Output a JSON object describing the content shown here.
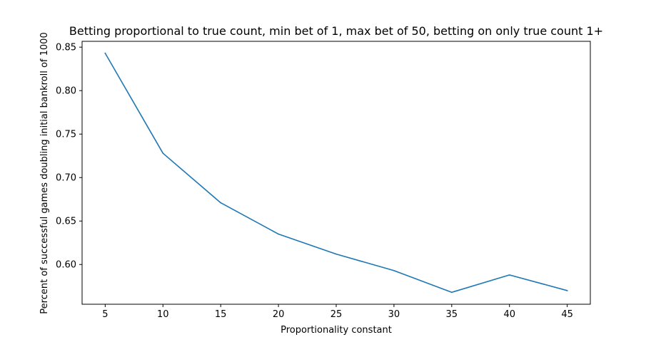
{
  "chart_data": {
    "type": "line",
    "title": "Betting proportional to true count, min bet of 1, max bet of 50, betting on only true count 1+",
    "xlabel": "Proportionality constant",
    "ylabel": "Percent of successful games doubling initial bankroll of 1000",
    "x": [
      5,
      10,
      15,
      20,
      25,
      30,
      35,
      40,
      45
    ],
    "series": [
      {
        "values": [
          0.843,
          0.728,
          0.671,
          0.635,
          0.612,
          0.593,
          0.568,
          0.588,
          0.57
        ],
        "color": "#1f77b4"
      }
    ],
    "xlim": [
      3,
      47
    ],
    "ylim": [
      0.5543,
      0.8567
    ],
    "xticks": [
      5,
      10,
      15,
      20,
      25,
      30,
      35,
      40,
      45
    ],
    "xtick_labels": [
      "5",
      "10",
      "15",
      "20",
      "25",
      "30",
      "35",
      "40",
      "45"
    ],
    "yticks": [
      0.6,
      0.65,
      0.7,
      0.75,
      0.8,
      0.85
    ],
    "ytick_labels": [
      "0.60",
      "0.65",
      "0.70",
      "0.75",
      "0.80",
      "0.85"
    ],
    "grid": false,
    "legend": "none"
  }
}
